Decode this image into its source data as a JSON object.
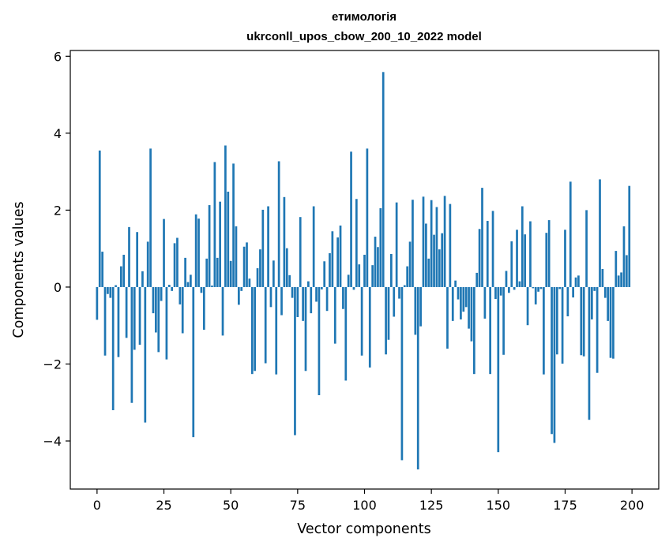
{
  "chart_data": {
    "type": "bar",
    "title": "етимологія",
    "subtitle": "ukrconll_upos_cbow_200_10_2022 model",
    "xlabel": "Vector components",
    "ylabel": "Components values",
    "xlim": [
      -10,
      210
    ],
    "ylim": [
      -5.25,
      6.15
    ],
    "xticks": [
      0,
      25,
      50,
      75,
      100,
      125,
      150,
      175,
      200
    ],
    "xtick_labels": [
      "0",
      "25",
      "50",
      "75",
      "100",
      "125",
      "150",
      "175",
      "200"
    ],
    "yticks": [
      -4,
      -2,
      0,
      2,
      4,
      6
    ],
    "ytick_labels": [
      "−4",
      "−2",
      "0",
      "2",
      "4",
      "6"
    ],
    "bar_color": "#1f77b4",
    "x": [
      0,
      1,
      2,
      3,
      4,
      5,
      6,
      7,
      8,
      9,
      10,
      11,
      12,
      13,
      14,
      15,
      16,
      17,
      18,
      19,
      20,
      21,
      22,
      23,
      24,
      25,
      26,
      27,
      28,
      29,
      30,
      31,
      32,
      33,
      34,
      35,
      36,
      37,
      38,
      39,
      40,
      41,
      42,
      43,
      44,
      45,
      46,
      47,
      48,
      49,
      50,
      51,
      52,
      53,
      54,
      55,
      56,
      57,
      58,
      59,
      60,
      61,
      62,
      63,
      64,
      65,
      66,
      67,
      68,
      69,
      70,
      71,
      72,
      73,
      74,
      75,
      76,
      77,
      78,
      79,
      80,
      81,
      82,
      83,
      84,
      85,
      86,
      87,
      88,
      89,
      90,
      91,
      92,
      93,
      94,
      95,
      96,
      97,
      98,
      99,
      100,
      101,
      102,
      103,
      104,
      105,
      106,
      107,
      108,
      109,
      110,
      111,
      112,
      113,
      114,
      115,
      116,
      117,
      118,
      119,
      120,
      121,
      122,
      123,
      124,
      125,
      126,
      127,
      128,
      129,
      130,
      131,
      132,
      133,
      134,
      135,
      136,
      137,
      138,
      139,
      140,
      141,
      142,
      143,
      144,
      145,
      146,
      147,
      148,
      149,
      150,
      151,
      152,
      153,
      154,
      155,
      156,
      157,
      158,
      159,
      160,
      161,
      162,
      163,
      164,
      165,
      166,
      167,
      168,
      169,
      170,
      171,
      172,
      173,
      174,
      175,
      176,
      177,
      178,
      179,
      180,
      181,
      182,
      183,
      184,
      185,
      186,
      187,
      188,
      189,
      190,
      191,
      192,
      193,
      194,
      195,
      196,
      197,
      198,
      199
    ],
    "values": [
      -0.85,
      3.55,
      0.92,
      -1.78,
      -0.18,
      -0.28,
      -3.2,
      0.05,
      -1.82,
      0.54,
      0.84,
      -1.32,
      1.56,
      -3.01,
      -1.63,
      1.43,
      -1.5,
      0.41,
      -3.52,
      1.18,
      3.6,
      -0.68,
      -1.18,
      -1.69,
      -0.36,
      1.77,
      -1.88,
      0.06,
      -0.1,
      1.14,
      1.28,
      -0.45,
      -1.2,
      0.76,
      0.13,
      0.32,
      -3.9,
      1.89,
      1.78,
      -0.15,
      -1.11,
      0.74,
      2.13,
      0.04,
      3.25,
      0.76,
      2.22,
      -1.26,
      3.68,
      2.48,
      0.68,
      3.21,
      1.58,
      -0.46,
      -0.1,
      1.05,
      1.16,
      0.22,
      -2.26,
      -2.18,
      0.49,
      0.98,
      2.01,
      -1.98,
      2.1,
      -0.52,
      0.69,
      -2.27,
      3.27,
      -0.73,
      2.34,
      1.01,
      0.31,
      -0.28,
      -3.85,
      -0.78,
      1.82,
      -0.88,
      -2.18,
      0.15,
      -0.68,
      2.1,
      -0.38,
      -2.81,
      -0.06,
      0.67,
      -0.62,
      0.88,
      1.45,
      -1.47,
      1.29,
      1.6,
      -0.57,
      -2.43,
      0.32,
      3.52,
      -0.07,
      2.29,
      0.59,
      -1.78,
      0.84,
      3.6,
      -2.09,
      0.57,
      1.31,
      1.04,
      2.05,
      5.59,
      -1.75,
      -1.37,
      0.86,
      -0.77,
      2.2,
      -0.3,
      -4.5,
      0.05,
      0.54,
      1.18,
      2.27,
      -1.24,
      -4.74,
      -1.02,
      2.35,
      1.65,
      0.74,
      2.26,
      1.36,
      2.08,
      0.98,
      1.4,
      2.37,
      -1.6,
      2.16,
      -0.88,
      0.17,
      -0.32,
      -0.84,
      -0.64,
      -0.52,
      -1.08,
      -1.41,
      -2.26,
      0.37,
      1.51,
      2.58,
      -0.82,
      1.72,
      -2.26,
      1.98,
      -0.31,
      -4.29,
      -0.22,
      -1.76,
      0.42,
      -0.15,
      1.19,
      -0.07,
      1.49,
      0.15,
      2.1,
      1.37,
      -0.99,
      1.71,
      -0.03,
      -0.45,
      -0.12,
      -0.05,
      -2.27,
      1.41,
      1.74,
      -3.82,
      -4.05,
      -1.75,
      -0.05,
      -1.99,
      1.49,
      -0.76,
      2.74,
      -0.27,
      0.25,
      0.3,
      -1.77,
      -1.8,
      2.0,
      -3.45,
      -0.84,
      -0.1,
      -2.23,
      2.8,
      0.47,
      -0.28,
      -0.88,
      -1.84,
      -1.86,
      0.94,
      0.3,
      0.38,
      1.58,
      0.83,
      2.63
    ]
  }
}
